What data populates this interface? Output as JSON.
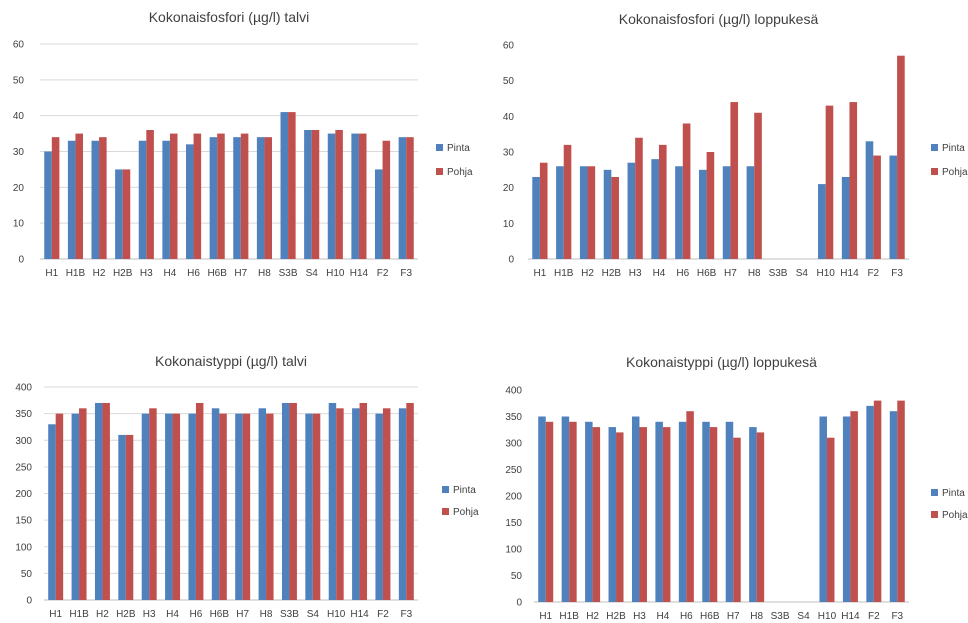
{
  "chart_data": [
    {
      "type": "bar",
      "title": "Kokonaisfosfori (µg/l) talvi",
      "categories": [
        "H1",
        "H1B",
        "H2",
        "H2B",
        "H3",
        "H4",
        "H6",
        "H6B",
        "H7",
        "H8",
        "S3B",
        "S4",
        "H10",
        "H14",
        "F2",
        "F3"
      ],
      "ylim": [
        0,
        60
      ],
      "yticks": [
        0,
        10,
        20,
        30,
        40,
        50,
        60
      ],
      "grid": true,
      "legend": "right",
      "series": [
        {
          "name": "Pinta",
          "color": "#4f81bd",
          "values": [
            30,
            33,
            33,
            25,
            33,
            33,
            32,
            34,
            34,
            34,
            41,
            36,
            35,
            35,
            25,
            34
          ]
        },
        {
          "name": "Pohja",
          "color": "#c0504d",
          "values": [
            34,
            35,
            34,
            25,
            36,
            35,
            35,
            35,
            35,
            34,
            41,
            36,
            36,
            35,
            33,
            34
          ]
        }
      ]
    },
    {
      "type": "bar",
      "title": "Kokonaisfosfori (µg/l) loppukesä",
      "categories": [
        "H1",
        "H1B",
        "H2",
        "H2B",
        "H3",
        "H4",
        "H6",
        "H6B",
        "H7",
        "H8",
        "S3B",
        "S4",
        "H10",
        "H14",
        "F2",
        "F3"
      ],
      "ylim": [
        0,
        60
      ],
      "yticks": [
        0,
        10,
        20,
        30,
        40,
        50,
        60
      ],
      "grid": false,
      "legend": "right",
      "series": [
        {
          "name": "Pinta",
          "color": "#4f81bd",
          "values": [
            23,
            26,
            26,
            25,
            27,
            28,
            26,
            25,
            26,
            26,
            null,
            null,
            21,
            23,
            33,
            29
          ]
        },
        {
          "name": "Pohja",
          "color": "#c0504d",
          "values": [
            27,
            32,
            26,
            23,
            34,
            32,
            38,
            30,
            44,
            41,
            null,
            null,
            43,
            44,
            29,
            57
          ]
        }
      ]
    },
    {
      "type": "bar",
      "title": "Kokonaistyppi (µg/l) talvi",
      "categories": [
        "H1",
        "H1B",
        "H2",
        "H2B",
        "H3",
        "H4",
        "H6",
        "H6B",
        "H7",
        "H8",
        "S3B",
        "S4",
        "H10",
        "H14",
        "F2",
        "F3"
      ],
      "ylim": [
        0,
        400
      ],
      "yticks": [
        0,
        50,
        100,
        150,
        200,
        250,
        300,
        350,
        400
      ],
      "grid": true,
      "legend": "right",
      "series": [
        {
          "name": "Pinta",
          "color": "#4f81bd",
          "values": [
            330,
            350,
            370,
            310,
            350,
            350,
            350,
            360,
            350,
            360,
            370,
            350,
            370,
            360,
            350,
            360
          ]
        },
        {
          "name": "Pohja",
          "color": "#c0504d",
          "values": [
            350,
            360,
            370,
            310,
            360,
            350,
            370,
            350,
            350,
            350,
            370,
            350,
            360,
            370,
            360,
            370
          ]
        }
      ]
    },
    {
      "type": "bar",
      "title": "Kokonaistyppi (µg/l) loppukesä",
      "categories": [
        "H1",
        "H1B",
        "H2",
        "H2B",
        "H3",
        "H4",
        "H6",
        "H6B",
        "H7",
        "H8",
        "S3B",
        "S4",
        "H10",
        "H14",
        "F2",
        "F3"
      ],
      "ylim": [
        0,
        400
      ],
      "yticks": [
        0,
        50,
        100,
        150,
        200,
        250,
        300,
        350,
        400
      ],
      "grid": false,
      "legend": "right",
      "series": [
        {
          "name": "Pinta",
          "color": "#4f81bd",
          "values": [
            350,
            350,
            340,
            330,
            350,
            340,
            340,
            340,
            340,
            330,
            null,
            null,
            350,
            350,
            370,
            360
          ]
        },
        {
          "name": "Pohja",
          "color": "#c0504d",
          "values": [
            340,
            340,
            330,
            320,
            330,
            330,
            360,
            330,
            310,
            320,
            null,
            null,
            310,
            360,
            380,
            380
          ]
        }
      ]
    }
  ]
}
